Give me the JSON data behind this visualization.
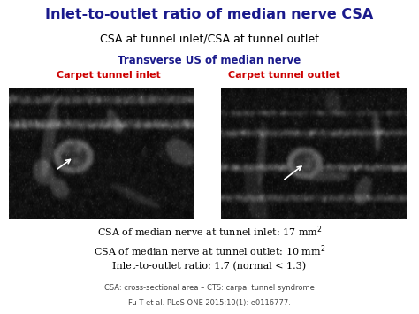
{
  "title": "Inlet-to-outlet ratio of median nerve CSA",
  "subtitle": "CSA at tunnel inlet/CSA at tunnel outlet",
  "transverse_label": "Transverse US of median nerve",
  "inlet_label": "Carpet tunnel inlet",
  "outlet_label": "Carpet tunnel outlet",
  "stat1": "CSA of median nerve at tunnel inlet: 17 mm",
  "stat2": "CSA of median nerve at tunnel outlet: 10 mm",
  "stat3": "Inlet-to-outlet ratio: 1.7 (normal < 1.3)",
  "footnote1": "CSA: cross-sectional area – CTS: carpal tunnel syndrome",
  "footnote2": "Fu T et al. PLoS ONE 2015;10(1): e0116777.",
  "title_color": "#1a1a8c",
  "subtitle_color": "#000000",
  "transverse_color": "#1a1a8c",
  "inlet_outlet_color": "#cc0000",
  "stat_color": "#000000",
  "footnote_color": "#444444",
  "bg_color": "#ffffff"
}
